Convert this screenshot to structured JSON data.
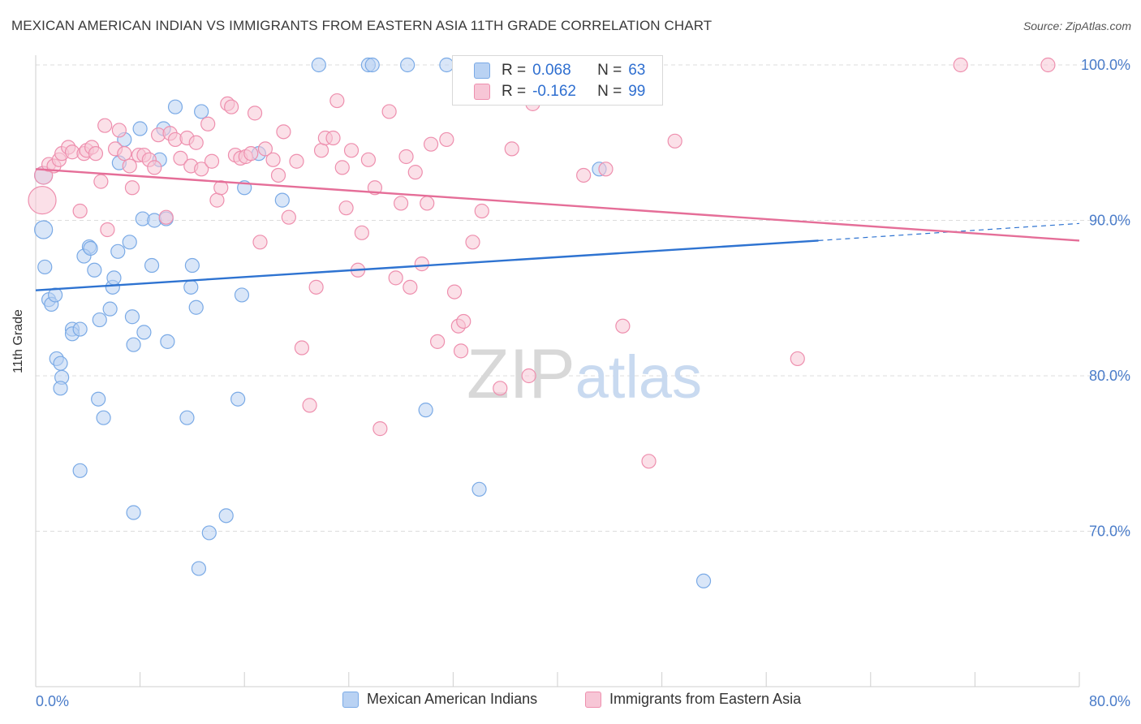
{
  "title": "MEXICAN AMERICAN INDIAN VS IMMIGRANTS FROM EASTERN ASIA 11TH GRADE CORRELATION CHART",
  "source": "Source: ZipAtlas.com",
  "colors": {
    "blue": "#7aaae6",
    "blue_fill": "#b9d2f3",
    "blue_line": "#2e73d1",
    "pink": "#ee8fae",
    "pink_fill": "#f7c6d6",
    "pink_line": "#e56e98",
    "tick_label": "#4a7cc9"
  },
  "legend": {
    "r_label": "R =",
    "n_label": "N =",
    "blue": {
      "r": "0.068",
      "n": "63"
    },
    "pink": {
      "r": "-0.162",
      "n": "99"
    }
  },
  "chart_data": {
    "type": "scatter",
    "title": "MEXICAN AMERICAN INDIAN VS IMMIGRANTS FROM EASTERN ASIA 11TH GRADE CORRELATION CHART",
    "xlabel": "",
    "ylabel": "11th Grade",
    "xlim": [
      0,
      80
    ],
    "ylim": [
      60.5,
      102
    ],
    "x_tick_labels": [
      "0.0%",
      "80.0%"
    ],
    "y_ticks": [
      70,
      80,
      90,
      100
    ],
    "y_tick_labels": [
      "70.0%",
      "80.0%",
      "90.0%",
      "100.0%"
    ],
    "grid": true,
    "series": [
      {
        "name": "Mexican American Indians",
        "color": "#7aaae6",
        "trend": {
          "x0": 0,
          "y0": 85.5,
          "x1": 60,
          "y1": 88.7,
          "dash_to_x": 80,
          "dash_to_y": 89.8
        },
        "points": [
          [
            0.6,
            92.9
          ],
          [
            0.6,
            89.4
          ],
          [
            0.7,
            87.0
          ],
          [
            1.0,
            84.9
          ],
          [
            1.2,
            84.6
          ],
          [
            1.5,
            85.2
          ],
          [
            1.6,
            81.1
          ],
          [
            1.9,
            80.8
          ],
          [
            2.0,
            79.9
          ],
          [
            1.9,
            79.2
          ],
          [
            2.8,
            83.0
          ],
          [
            2.8,
            82.7
          ],
          [
            3.4,
            83.0
          ],
          [
            4.1,
            88.3
          ],
          [
            3.7,
            87.7
          ],
          [
            4.2,
            88.2
          ],
          [
            4.5,
            86.8
          ],
          [
            4.9,
            83.6
          ],
          [
            4.8,
            78.5
          ],
          [
            5.2,
            77.3
          ],
          [
            5.7,
            84.3
          ],
          [
            5.9,
            85.7
          ],
          [
            6.0,
            86.3
          ],
          [
            6.3,
            88.0
          ],
          [
            6.4,
            93.7
          ],
          [
            6.8,
            95.2
          ],
          [
            7.2,
            88.6
          ],
          [
            7.4,
            83.8
          ],
          [
            8.2,
            90.1
          ],
          [
            8.3,
            82.8
          ],
          [
            8.9,
            87.1
          ],
          [
            9.1,
            90.0
          ],
          [
            9.5,
            93.9
          ],
          [
            9.8,
            95.9
          ],
          [
            10.0,
            90.1
          ],
          [
            10.1,
            82.2
          ],
          [
            10.7,
            97.3
          ],
          [
            11.6,
            77.3
          ],
          [
            11.9,
            85.7
          ],
          [
            12.0,
            87.1
          ],
          [
            12.3,
            84.4
          ],
          [
            12.7,
            97.0
          ],
          [
            13.3,
            69.9
          ],
          [
            14.6,
            71.0
          ],
          [
            15.5,
            78.5
          ],
          [
            15.8,
            85.2
          ],
          [
            16.0,
            92.1
          ],
          [
            17.1,
            94.3
          ],
          [
            18.9,
            91.3
          ],
          [
            21.7,
            100.0
          ],
          [
            25.5,
            100.0
          ],
          [
            25.8,
            100.0
          ],
          [
            28.5,
            100.0
          ],
          [
            29.9,
            77.8
          ],
          [
            31.5,
            100.0
          ],
          [
            34.0,
            72.7
          ],
          [
            43.2,
            93.3
          ],
          [
            51.2,
            66.8
          ],
          [
            3.4,
            73.9
          ],
          [
            7.5,
            71.2
          ],
          [
            12.5,
            67.6
          ],
          [
            8.0,
            95.9
          ],
          [
            7.5,
            82.0
          ]
        ]
      },
      {
        "name": "Immigrants from Eastern Asia",
        "color": "#ee8fae",
        "trend": {
          "x0": 0,
          "y0": 93.3,
          "x1": 80,
          "y1": 88.7
        },
        "points": [
          [
            0.5,
            91.3
          ],
          [
            0.6,
            92.9
          ],
          [
            1.0,
            93.6
          ],
          [
            1.4,
            93.5
          ],
          [
            1.8,
            93.9
          ],
          [
            2.0,
            94.3
          ],
          [
            2.5,
            94.7
          ],
          [
            2.8,
            94.4
          ],
          [
            3.4,
            90.6
          ],
          [
            3.7,
            94.3
          ],
          [
            3.9,
            94.5
          ],
          [
            4.3,
            94.7
          ],
          [
            4.6,
            94.3
          ],
          [
            5.0,
            92.5
          ],
          [
            5.3,
            96.1
          ],
          [
            5.5,
            89.4
          ],
          [
            6.1,
            94.6
          ],
          [
            6.4,
            95.8
          ],
          [
            6.8,
            94.3
          ],
          [
            7.2,
            93.5
          ],
          [
            7.4,
            92.1
          ],
          [
            7.9,
            94.2
          ],
          [
            8.3,
            94.2
          ],
          [
            8.7,
            93.9
          ],
          [
            9.1,
            93.4
          ],
          [
            9.4,
            95.5
          ],
          [
            10.0,
            90.2
          ],
          [
            10.3,
            95.6
          ],
          [
            10.7,
            95.2
          ],
          [
            11.1,
            94.0
          ],
          [
            11.6,
            95.3
          ],
          [
            11.9,
            93.5
          ],
          [
            12.3,
            95.0
          ],
          [
            12.7,
            93.3
          ],
          [
            13.2,
            96.2
          ],
          [
            13.5,
            93.8
          ],
          [
            13.9,
            91.3
          ],
          [
            14.2,
            92.1
          ],
          [
            14.7,
            97.5
          ],
          [
            15.0,
            97.3
          ],
          [
            15.3,
            94.2
          ],
          [
            15.7,
            94.0
          ],
          [
            16.1,
            94.1
          ],
          [
            16.5,
            94.3
          ],
          [
            16.8,
            96.9
          ],
          [
            17.2,
            88.6
          ],
          [
            17.6,
            94.6
          ],
          [
            18.2,
            93.9
          ],
          [
            18.6,
            92.9
          ],
          [
            19.0,
            95.7
          ],
          [
            19.4,
            90.2
          ],
          [
            20.0,
            93.8
          ],
          [
            20.4,
            81.8
          ],
          [
            21.0,
            78.1
          ],
          [
            21.5,
            85.7
          ],
          [
            21.9,
            94.5
          ],
          [
            22.2,
            95.3
          ],
          [
            22.8,
            95.3
          ],
          [
            23.1,
            97.7
          ],
          [
            23.5,
            93.4
          ],
          [
            23.8,
            90.8
          ],
          [
            24.2,
            94.5
          ],
          [
            24.7,
            86.8
          ],
          [
            25.0,
            89.2
          ],
          [
            25.5,
            93.9
          ],
          [
            26.0,
            92.1
          ],
          [
            26.4,
            76.6
          ],
          [
            27.1,
            97.0
          ],
          [
            27.6,
            86.3
          ],
          [
            28.0,
            91.1
          ],
          [
            28.4,
            94.1
          ],
          [
            28.7,
            85.7
          ],
          [
            29.1,
            93.1
          ],
          [
            29.6,
            87.2
          ],
          [
            30.0,
            91.1
          ],
          [
            30.3,
            94.9
          ],
          [
            30.8,
            82.2
          ],
          [
            31.5,
            95.2
          ],
          [
            32.1,
            85.4
          ],
          [
            32.4,
            83.2
          ],
          [
            32.6,
            81.6
          ],
          [
            32.8,
            83.5
          ],
          [
            33.5,
            88.6
          ],
          [
            34.2,
            90.6
          ],
          [
            35.6,
            79.2
          ],
          [
            36.5,
            94.6
          ],
          [
            37.8,
            80.0
          ],
          [
            38.1,
            97.5
          ],
          [
            42.0,
            92.9
          ],
          [
            43.7,
            93.3
          ],
          [
            45.0,
            83.2
          ],
          [
            47.0,
            74.5
          ],
          [
            49.0,
            95.1
          ],
          [
            58.4,
            81.1
          ],
          [
            70.9,
            100.0
          ],
          [
            77.6,
            100.0
          ],
          [
            40.5,
            100.0
          ],
          [
            36.7,
            100.0
          ],
          [
            34.8,
            98.1
          ]
        ]
      }
    ]
  },
  "watermark": {
    "part1": "ZIP",
    "part2": "atlas"
  }
}
